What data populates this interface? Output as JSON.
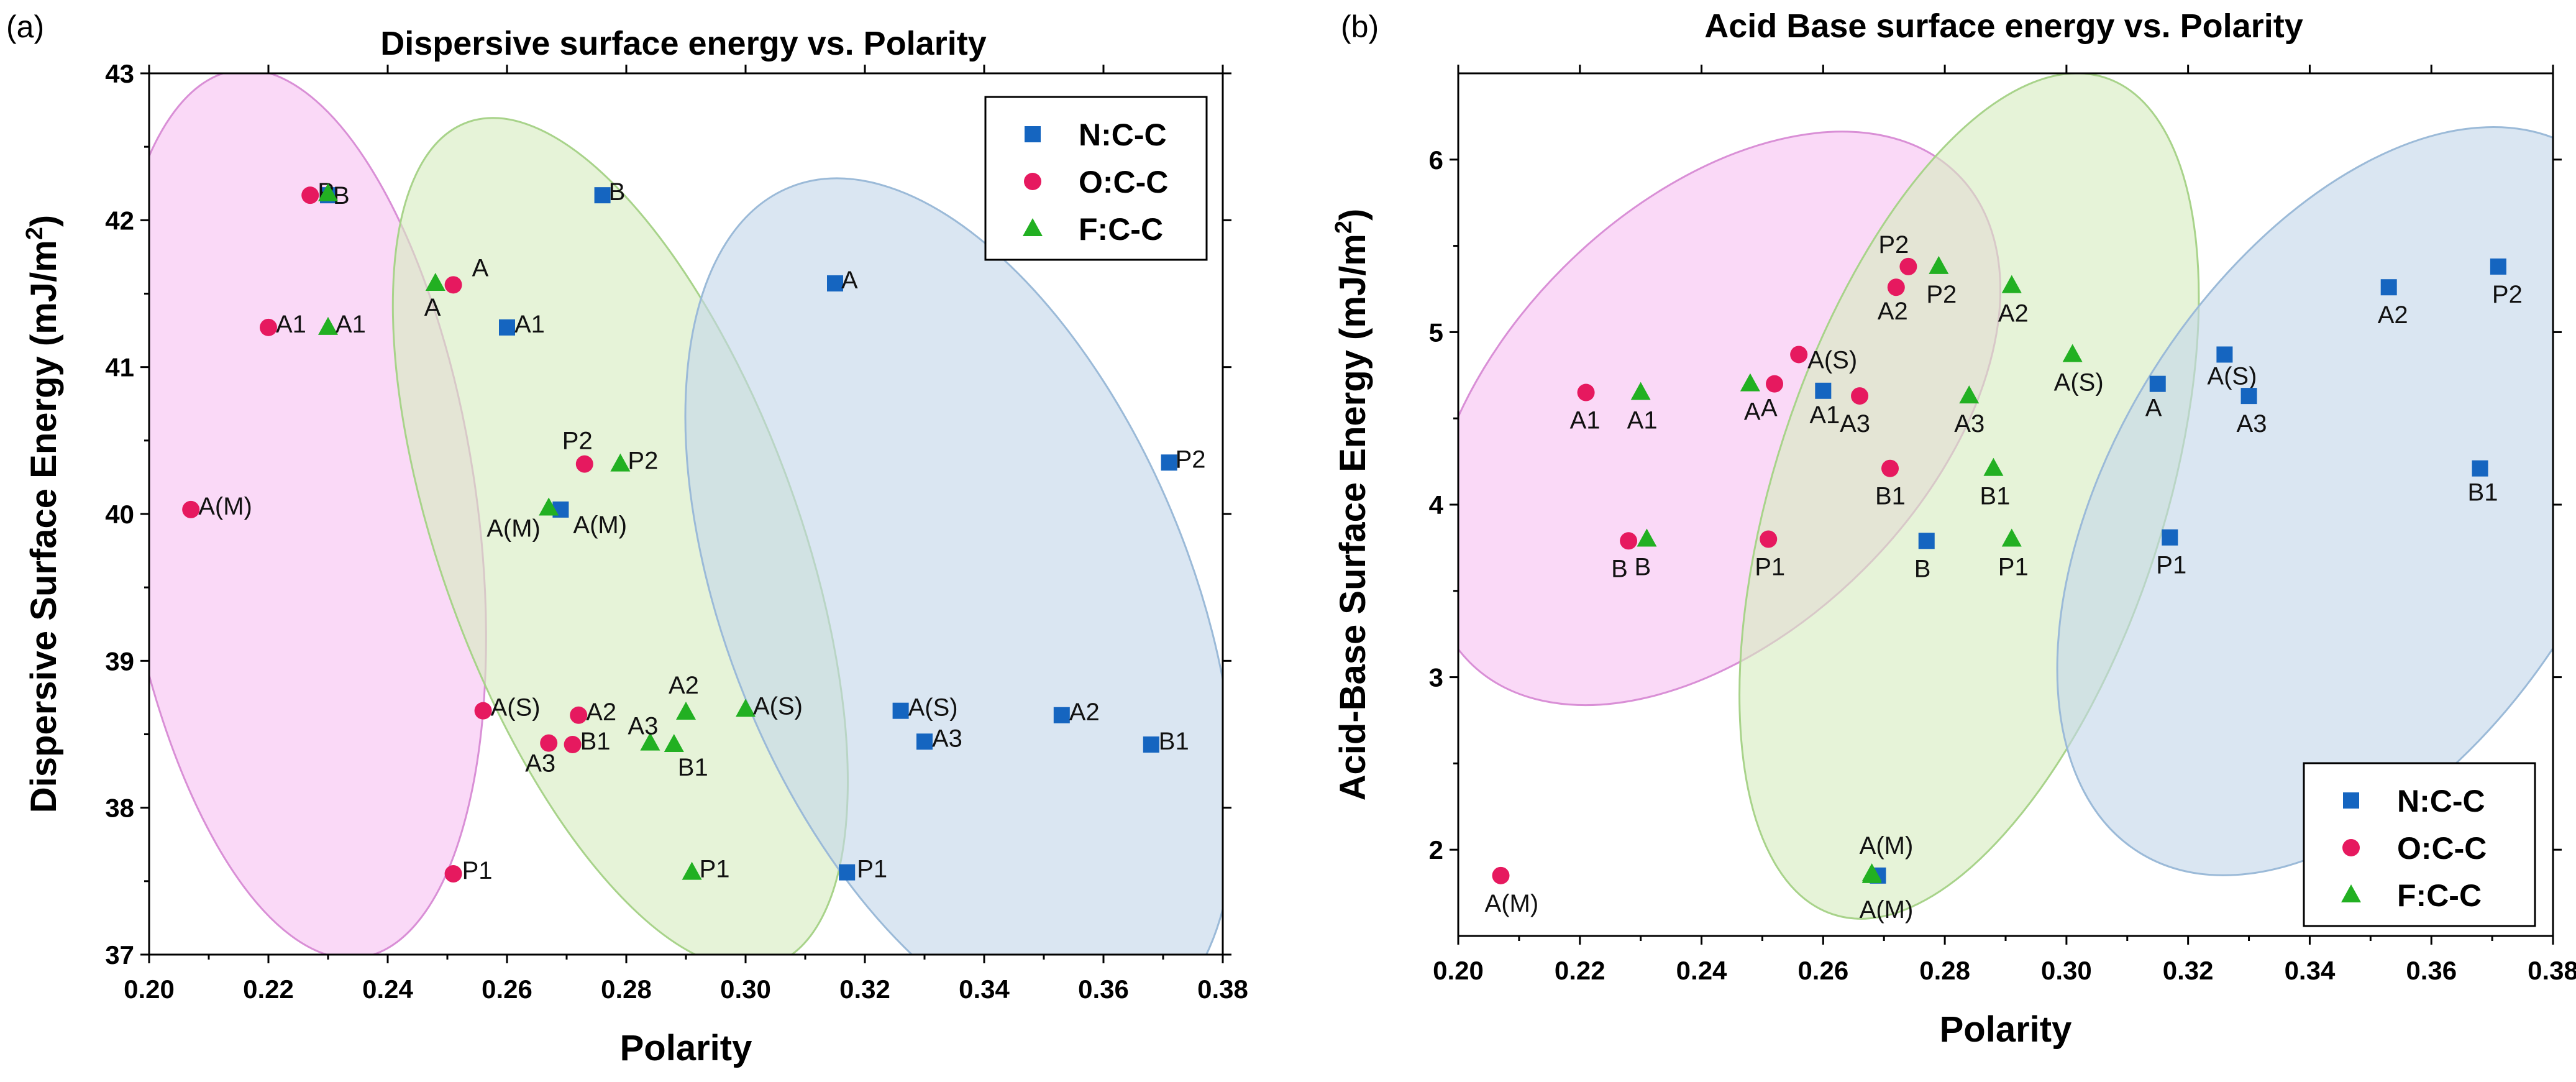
{
  "chart_data": [
    {
      "panel": "(a)",
      "type": "scatter",
      "title": "Dispersive surface energy vs. Polarity",
      "xlabel": "Polarity",
      "ylabel": "Dispersive Surface Energy (mJ/m",
      "ylabel_sup": "2",
      "ylabel_end": ")",
      "xlim": [
        0.2,
        0.38
      ],
      "ylim": [
        37,
        43
      ],
      "xticks": [
        "0.20",
        "0.22",
        "0.24",
        "0.26",
        "0.28",
        "0.30",
        "0.32",
        "0.34",
        "0.36",
        "0.38"
      ],
      "yticks": [
        "37",
        "38",
        "39",
        "40",
        "41",
        "42",
        "43"
      ],
      "legend_position": "top-right",
      "colors": {
        "N": "#1565c0",
        "O": "#e6195f",
        "F": "#22b022"
      },
      "ellipses": [
        {
          "cx": 0.225,
          "cy": 40.0,
          "rx": 0.03,
          "ry": 3.05,
          "rotate": -8,
          "fill": "#f7c2f2",
          "stroke": "#d98fd6"
        },
        {
          "cx": 0.279,
          "cy": 39.8,
          "rx": 0.03,
          "ry": 3.05,
          "rotate": -20,
          "fill": "#d6ecc0",
          "stroke": "#a8d38a"
        },
        {
          "cx": 0.336,
          "cy": 39.35,
          "rx": 0.039,
          "ry": 3.1,
          "rotate": -22,
          "fill": "#c3d7ea",
          "stroke": "#9bbad8"
        }
      ],
      "series": [
        {
          "name": "N:C-C",
          "key": "N",
          "marker": "square",
          "points": [
            {
              "x": 0.23,
              "y": 42.17,
              "label": "B",
              "dx": 8,
              "dy": 14
            },
            {
              "x": 0.276,
              "y": 42.17,
              "label": "B",
              "dx": 10,
              "dy": 8
            },
            {
              "x": 0.315,
              "y": 41.57,
              "label": "A",
              "dx": 10,
              "dy": 8
            },
            {
              "x": 0.26,
              "y": 41.27,
              "label": "A1",
              "dx": 12,
              "dy": 8
            },
            {
              "x": 0.371,
              "y": 40.35,
              "label": "P2",
              "dx": 10,
              "dy": 8
            },
            {
              "x": 0.269,
              "y": 40.03,
              "label": "A(M)",
              "dx": 20,
              "dy": 38
            },
            {
              "x": 0.326,
              "y": 38.66,
              "label": "A(S)",
              "dx": 12,
              "dy": 8
            },
            {
              "x": 0.353,
              "y": 38.63,
              "label": "A2",
              "dx": 12,
              "dy": 8
            },
            {
              "x": 0.33,
              "y": 38.45,
              "label": "A3",
              "dx": 12,
              "dy": 8
            },
            {
              "x": 0.368,
              "y": 38.43,
              "label": "B1",
              "dx": 12,
              "dy": 8
            },
            {
              "x": 0.317,
              "y": 37.56,
              "label": "P1",
              "dx": 16,
              "dy": 8
            }
          ]
        },
        {
          "name": "O:C-C",
          "key": "O",
          "marker": "circle",
          "points": [
            {
              "x": 0.227,
              "y": 42.17,
              "label": "P",
              "dx": 12,
              "dy": 8
            },
            {
              "x": 0.251,
              "y": 41.56,
              "label": "A",
              "dx": 30,
              "dy": -14
            },
            {
              "x": 0.22,
              "y": 41.27,
              "label": "A1",
              "dx": 12,
              "dy": 8
            },
            {
              "x": 0.273,
              "y": 40.34,
              "label": "P2",
              "dx": -36,
              "dy": -24
            },
            {
              "x": 0.207,
              "y": 40.03,
              "label": "A(M)",
              "dx": 12,
              "dy": 8
            },
            {
              "x": 0.256,
              "y": 38.66,
              "label": "A(S)",
              "dx": 12,
              "dy": 8
            },
            {
              "x": 0.272,
              "y": 38.63,
              "label": "A2",
              "dx": 12,
              "dy": 8
            },
            {
              "x": 0.267,
              "y": 38.44,
              "label": "A3",
              "dx": -38,
              "dy": 46
            },
            {
              "x": 0.271,
              "y": 38.43,
              "label": "B1",
              "dx": 12,
              "dy": 8
            },
            {
              "x": 0.251,
              "y": 37.55,
              "label": "P1",
              "dx": 14,
              "dy": 8
            }
          ]
        },
        {
          "name": "F:C-C",
          "key": "F",
          "marker": "triangle",
          "points": [
            {
              "x": 0.23,
              "y": 42.18,
              "label": "",
              "dx": 0,
              "dy": 0
            },
            {
              "x": 0.248,
              "y": 41.57,
              "label": "A",
              "dx": -18,
              "dy": 52
            },
            {
              "x": 0.23,
              "y": 41.27,
              "label": "A1",
              "dx": 12,
              "dy": 8
            },
            {
              "x": 0.279,
              "y": 40.34,
              "label": "P2",
              "dx": 12,
              "dy": 8
            },
            {
              "x": 0.267,
              "y": 40.04,
              "label": "A(M)",
              "dx": -100,
              "dy": 46
            },
            {
              "x": 0.29,
              "y": 38.65,
              "label": "A2",
              "dx": -28,
              "dy": -30
            },
            {
              "x": 0.3,
              "y": 38.67,
              "label": "A(S)",
              "dx": 12,
              "dy": 8
            },
            {
              "x": 0.284,
              "y": 38.44,
              "label": "A3",
              "dx": -36,
              "dy": -14
            },
            {
              "x": 0.288,
              "y": 38.43,
              "label": "B1",
              "dx": 6,
              "dy": 50
            },
            {
              "x": 0.291,
              "y": 37.56,
              "label": "P1",
              "dx": 12,
              "dy": 8
            }
          ]
        }
      ]
    },
    {
      "panel": "(b)",
      "type": "scatter",
      "title": "Acid Base surface energy vs. Polarity",
      "xlabel": "Polarity",
      "ylabel": "Acid-Base Surface Energy (mJ/m",
      "ylabel_sup": "2",
      "ylabel_end": ")",
      "xlim": [
        0.2,
        0.38
      ],
      "ylim": [
        1.5,
        6.5
      ],
      "xticks": [
        "0.20",
        "0.22",
        "0.24",
        "0.26",
        "0.28",
        "0.30",
        "0.32",
        "0.34",
        "0.36",
        "0.38"
      ],
      "yticks": [
        "2",
        "3",
        "4",
        "5",
        "6"
      ],
      "yticks_values": [
        2,
        3,
        4,
        5,
        6
      ],
      "legend_position": "bottom-right",
      "colors": {
        "N": "#1565c0",
        "O": "#e6195f",
        "F": "#22b022"
      },
      "ellipses": [
        {
          "cx": 0.242,
          "cy": 4.5,
          "rx": 0.035,
          "ry": 2.0,
          "rotate": 45,
          "fill": "#f7c2f2",
          "stroke": "#d98fd6"
        },
        {
          "cx": 0.284,
          "cy": 4.05,
          "rx": 0.032,
          "ry": 2.55,
          "rotate": 18,
          "fill": "#d6ecc0",
          "stroke": "#a8d38a"
        },
        {
          "cx": 0.348,
          "cy": 4.02,
          "rx": 0.04,
          "ry": 2.4,
          "rotate": 32,
          "fill": "#c3d7ea",
          "stroke": "#9bbad8"
        }
      ],
      "series": [
        {
          "name": "N:C-C",
          "key": "N",
          "marker": "square",
          "points": [
            {
              "x": 0.371,
              "y": 5.38,
              "label": "P2",
              "dx": -10,
              "dy": 58
            },
            {
              "x": 0.353,
              "y": 5.26,
              "label": "A2",
              "dx": -18,
              "dy": 58
            },
            {
              "x": 0.326,
              "y": 4.87,
              "label": "A(S)",
              "dx": -28,
              "dy": 48
            },
            {
              "x": 0.315,
              "y": 4.7,
              "label": "A",
              "dx": -20,
              "dy": 52
            },
            {
              "x": 0.26,
              "y": 4.66,
              "label": "A1",
              "dx": -22,
              "dy": 52
            },
            {
              "x": 0.33,
              "y": 4.63,
              "label": "A3",
              "dx": -20,
              "dy": 58
            },
            {
              "x": 0.368,
              "y": 4.21,
              "label": "B1",
              "dx": -20,
              "dy": 52
            },
            {
              "x": 0.277,
              "y": 3.79,
              "label": "B",
              "dx": -20,
              "dy": 58
            },
            {
              "x": 0.317,
              "y": 3.81,
              "label": "P1",
              "dx": -22,
              "dy": 58
            },
            {
              "x": 0.269,
              "y": 1.85,
              "label": "",
              "dx": 0,
              "dy": 0
            }
          ]
        },
        {
          "name": "O:C-C",
          "key": "O",
          "marker": "circle",
          "points": [
            {
              "x": 0.274,
              "y": 5.38,
              "label": "P2",
              "dx": -48,
              "dy": -22
            },
            {
              "x": 0.272,
              "y": 5.26,
              "label": "A2",
              "dx": -30,
              "dy": 52
            },
            {
              "x": 0.256,
              "y": 4.87,
              "label": "A(S)",
              "dx": 14,
              "dy": 22
            },
            {
              "x": 0.221,
              "y": 4.65,
              "label": "A1",
              "dx": -26,
              "dy": 58
            },
            {
              "x": 0.252,
              "y": 4.7,
              "label": "A",
              "dx": -22,
              "dy": 52
            },
            {
              "x": 0.266,
              "y": 4.63,
              "label": "A3",
              "dx": -32,
              "dy": 58
            },
            {
              "x": 0.271,
              "y": 4.21,
              "label": "B1",
              "dx": -24,
              "dy": 58
            },
            {
              "x": 0.228,
              "y": 3.79,
              "label": "B",
              "dx": -28,
              "dy": 58
            },
            {
              "x": 0.251,
              "y": 3.8,
              "label": "P1",
              "dx": -22,
              "dy": 58
            },
            {
              "x": 0.207,
              "y": 1.85,
              "label": "A(M)",
              "dx": -26,
              "dy": 58
            }
          ]
        },
        {
          "name": "F:C-C",
          "key": "F",
          "marker": "triangle",
          "points": [
            {
              "x": 0.279,
              "y": 5.38,
              "label": "P2",
              "dx": -20,
              "dy": 58
            },
            {
              "x": 0.291,
              "y": 5.27,
              "label": "A2",
              "dx": -22,
              "dy": 58
            },
            {
              "x": 0.301,
              "y": 4.87,
              "label": "A(S)",
              "dx": -30,
              "dy": 58
            },
            {
              "x": 0.23,
              "y": 4.65,
              "label": "A1",
              "dx": -22,
              "dy": 58
            },
            {
              "x": 0.248,
              "y": 4.7,
              "label": "A",
              "dx": -10,
              "dy": 58
            },
            {
              "x": 0.284,
              "y": 4.63,
              "label": "A3",
              "dx": -24,
              "dy": 58
            },
            {
              "x": 0.288,
              "y": 4.21,
              "label": "B1",
              "dx": -22,
              "dy": 58
            },
            {
              "x": 0.231,
              "y": 3.8,
              "label": "B",
              "dx": -20,
              "dy": 58
            },
            {
              "x": 0.291,
              "y": 3.8,
              "label": "P1",
              "dx": -22,
              "dy": 58
            },
            {
              "x": 0.268,
              "y": 1.86,
              "label": "A(M)",
              "dx": -20,
              "dy": -32
            },
            {
              "x": 0.268,
              "y": 1.85,
              "label": "A(M)",
              "dx": -20,
              "dy": 68
            }
          ]
        }
      ]
    }
  ]
}
